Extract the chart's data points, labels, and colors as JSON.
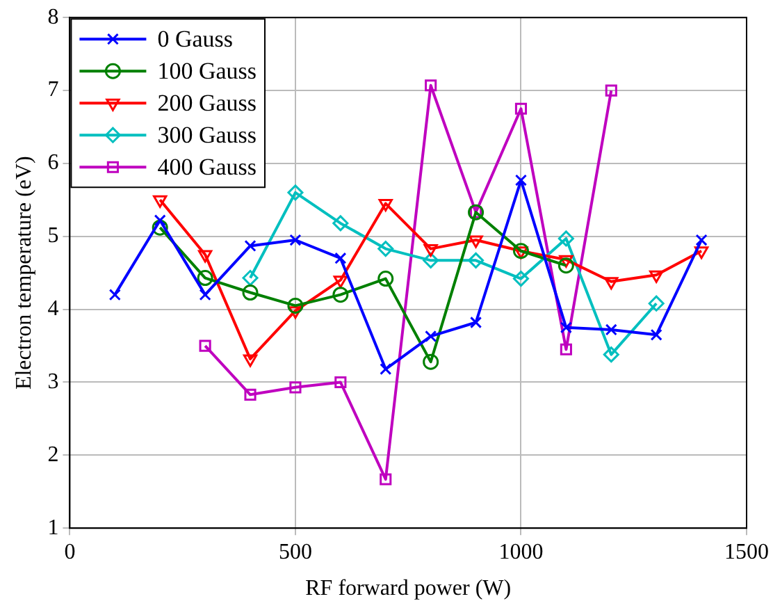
{
  "chart_data": {
    "type": "line",
    "xlabel": "RF forward power (W)",
    "ylabel": "Electron temperature (eV)",
    "xlim": [
      0,
      1500
    ],
    "xticks": [
      0,
      500,
      1000,
      1500
    ],
    "ylim": [
      1,
      8
    ],
    "yticks": [
      1,
      2,
      3,
      4,
      5,
      6,
      7,
      8
    ],
    "grid": true,
    "legend": "top left",
    "line_style": "solid",
    "series": [
      {
        "name": "0 Gauss",
        "color": "#0000ff",
        "marker": "cross",
        "x": [
          100,
          200,
          300,
          400,
          500,
          600,
          700,
          800,
          900,
          1000,
          1100,
          1200,
          1300,
          1400
        ],
        "values": [
          4.2,
          5.22,
          4.2,
          4.87,
          4.95,
          4.7,
          3.18,
          3.63,
          3.82,
          5.77,
          3.75,
          3.72,
          3.65,
          4.95
        ]
      },
      {
        "name": "100 Gauss",
        "color": "#008000",
        "marker": "circle",
        "x": [
          200,
          300,
          400,
          500,
          600,
          700,
          800,
          900,
          1000,
          1100
        ],
        "values": [
          5.12,
          4.43,
          4.23,
          4.05,
          4.2,
          4.42,
          3.28,
          5.33,
          4.8,
          4.6
        ]
      },
      {
        "name": "200 Gauss",
        "color": "#ff0000",
        "marker": "triangle",
        "x": [
          200,
          300,
          400,
          500,
          600,
          700,
          800,
          900,
          1000,
          1100,
          1200,
          1300,
          1400
        ],
        "values": [
          5.5,
          4.75,
          3.32,
          3.98,
          4.4,
          5.45,
          4.83,
          4.95,
          4.8,
          4.68,
          4.38,
          4.47,
          4.8
        ]
      },
      {
        "name": "300 Gauss",
        "color": "#00bfbf",
        "marker": "diamond",
        "x": [
          400,
          500,
          600,
          700,
          800,
          900,
          1000,
          1100,
          1200,
          1300
        ],
        "values": [
          4.43,
          5.6,
          5.18,
          4.83,
          4.67,
          4.67,
          4.42,
          4.97,
          3.38,
          4.08
        ]
      },
      {
        "name": "400 Gauss",
        "color": "#bf00bf",
        "marker": "square",
        "x": [
          300,
          400,
          500,
          600,
          700,
          800,
          900,
          1000,
          1100,
          1200
        ],
        "values": [
          3.5,
          2.83,
          2.93,
          3.0,
          1.67,
          7.07,
          5.33,
          6.75,
          3.45,
          7.0
        ]
      }
    ]
  }
}
